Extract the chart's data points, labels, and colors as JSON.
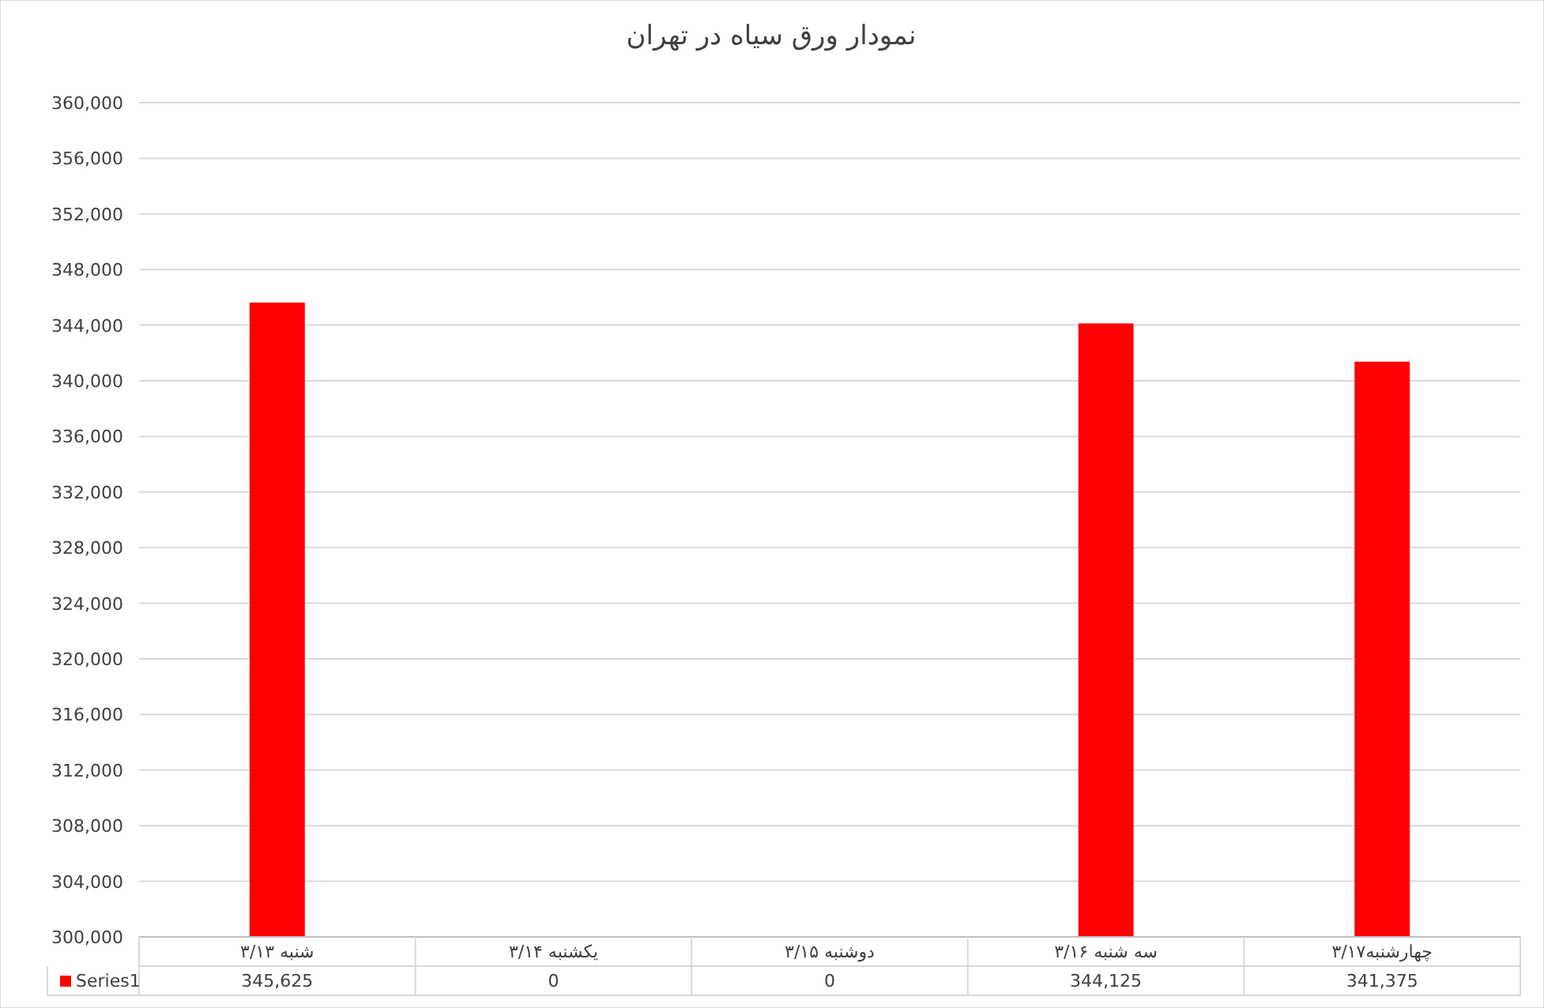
{
  "chart_data": {
    "type": "bar",
    "title": "نمودار ورق سیاه در تهران",
    "categories": [
      "شنبه ۳/۱۳",
      "یکشنبه ۳/۱۴",
      "دوشنبه ۳/۱۵",
      "سه شنبه ۳/۱۶",
      "چهارشنبه۳/۱۷"
    ],
    "series": [
      {
        "name": "Series1",
        "color": "#ff0000",
        "values": [
          345625,
          null,
          null,
          344125,
          341375
        ],
        "value_labels": [
          "345,625",
          "0",
          "0",
          "344,125",
          "341,375"
        ]
      }
    ],
    "ylim": [
      300000,
      360000
    ],
    "yticks": [
      {
        "value": 300000,
        "label": "300,000"
      },
      {
        "value": 304000,
        "label": "304,000"
      },
      {
        "value": 308000,
        "label": "308,000"
      },
      {
        "value": 312000,
        "label": "312,000"
      },
      {
        "value": 316000,
        "label": "316,000"
      },
      {
        "value": 320000,
        "label": "320,000"
      },
      {
        "value": 324000,
        "label": "324,000"
      },
      {
        "value": 328000,
        "label": "328,000"
      },
      {
        "value": 332000,
        "label": "332,000"
      },
      {
        "value": 336000,
        "label": "336,000"
      },
      {
        "value": 340000,
        "label": "340,000"
      },
      {
        "value": 344000,
        "label": "344,000"
      },
      {
        "value": 348000,
        "label": "348,000"
      },
      {
        "value": 352000,
        "label": "352,000"
      },
      {
        "value": 356000,
        "label": "356,000"
      },
      {
        "value": 360000,
        "label": "360,000"
      }
    ],
    "grid": "y",
    "legend": "bottom"
  }
}
